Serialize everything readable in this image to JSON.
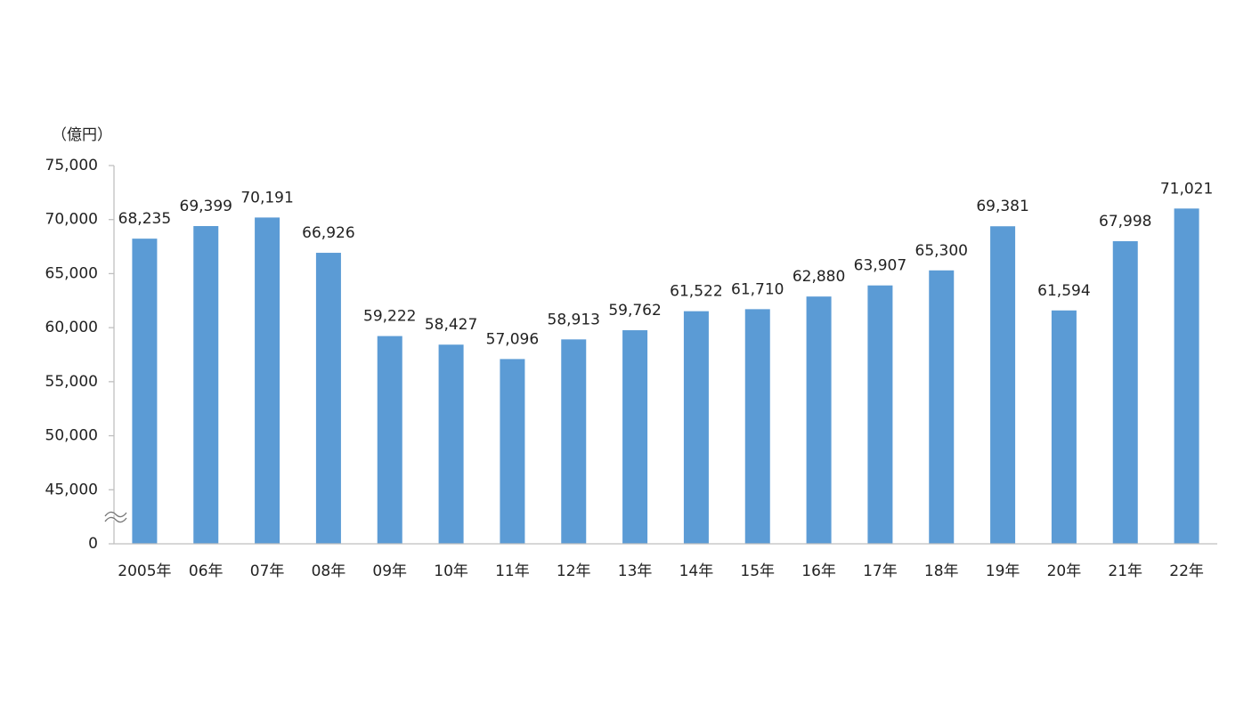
{
  "chart_data": {
    "type": "bar",
    "y_axis_label": "（億円）",
    "categories": [
      "2005年",
      "06年",
      "07年",
      "08年",
      "09年",
      "10年",
      "11年",
      "12年",
      "13年",
      "14年",
      "15年",
      "16年",
      "17年",
      "18年",
      "19年",
      "20年",
      "21年",
      "22年"
    ],
    "values": [
      68235,
      69399,
      70191,
      66926,
      59222,
      58427,
      57096,
      58913,
      59762,
      61522,
      61710,
      62880,
      63907,
      65300,
      69381,
      61594,
      67998,
      71021
    ],
    "value_labels": [
      "68,235",
      "69,399",
      "70,191",
      "66,926",
      "59,222",
      "58,427",
      "57,096",
      "58,913",
      "59,762",
      "61,522",
      "61,710",
      "62,880",
      "63,907",
      "65,300",
      "69,381",
      "61,594",
      "67,998",
      "71,021"
    ],
    "color": "#5b9bd5",
    "ylim": [
      0,
      75000
    ],
    "yticks": [
      0,
      {
        "value": 45000,
        "label": "45,000"
      },
      {
        "value": 50000,
        "label": "50,000"
      },
      {
        "value": 55000,
        "label": "55,000"
      },
      {
        "value": 60000,
        "label": "60,000"
      },
      {
        "value": 65000,
        "label": "65,000"
      },
      {
        "value": 70000,
        "label": "70,000"
      },
      {
        "value": 75000,
        "label": "75,000"
      }
    ],
    "axis_break": true,
    "grid": false
  }
}
